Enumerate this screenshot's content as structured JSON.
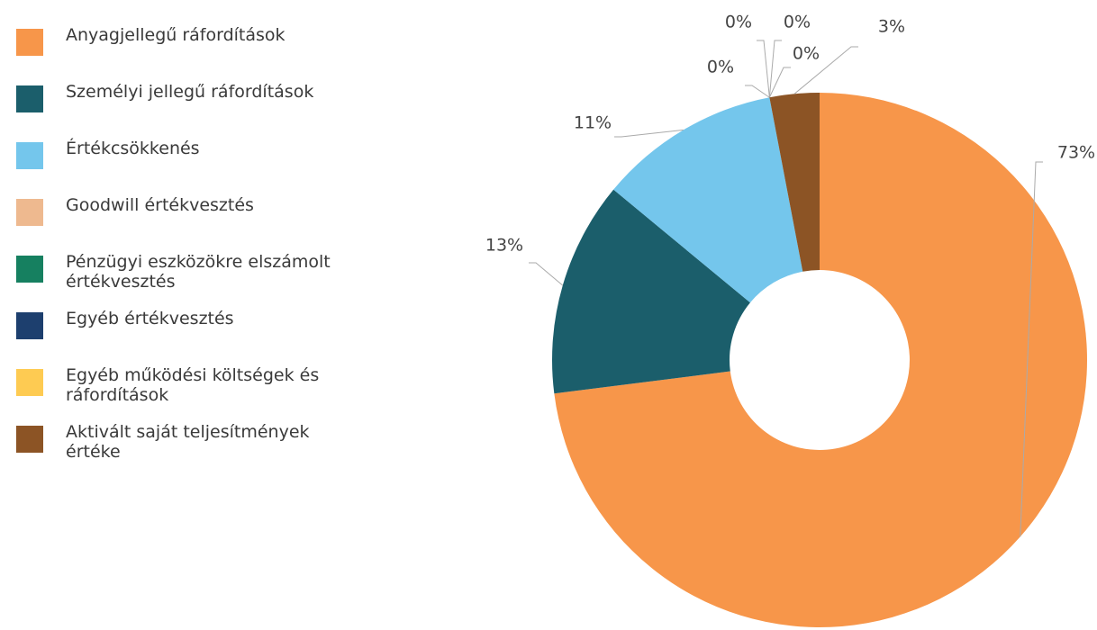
{
  "chart_data": {
    "type": "donut",
    "categories": [
      "Anyagjellegű ráfordítások",
      "Személyi jellegű ráfordítások",
      "Értékcsökkenés",
      "Goodwill értékvesztés",
      "Pénzügyi eszközökre elszámolt értékvesztés",
      "Egyéb értékvesztés",
      "Egyéb működési költségek és ráfordítások",
      "Aktivált saját teljesítmények értéke"
    ],
    "values": [
      73,
      13,
      11,
      0,
      0,
      0,
      0,
      3
    ],
    "value_labels": [
      "73%",
      "13%",
      "11%",
      "0%",
      "0%",
      "0%",
      "0%",
      "3%"
    ],
    "colors": [
      "#f7964a",
      "#1b5e6b",
      "#74c6ec",
      "#eeb98f",
      "#168060",
      "#1d3f6e",
      "#fecb52",
      "#8c5425"
    ]
  }
}
